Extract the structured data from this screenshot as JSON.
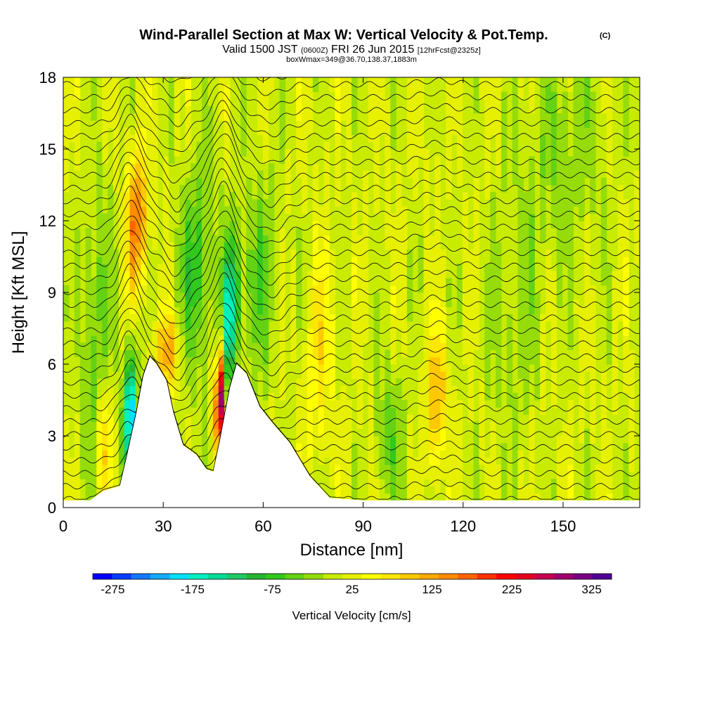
{
  "chart_data": {
    "type": "heatmap",
    "title": {
      "main": "Wind-Parallel Section at Max W: Vertical Velocity & Pot.Temp.",
      "copyright": "(C)",
      "valid_prefix": "Valid 1500 JST",
      "valid_utc": "(0600Z)",
      "valid_date": "FRI 26 Jun 2015",
      "forecast": "[12hrFcst@2325z]",
      "boxmax": "boxWmax=349@36.70,138.37,1883m"
    },
    "xlabel": "Distance [nm]",
    "ylabel": "Height [Kft MSL]",
    "xlim": [
      0,
      173
    ],
    "ylim": [
      0,
      18
    ],
    "xticks": [
      "0",
      "30",
      "60",
      "90",
      "120",
      "150"
    ],
    "xtick_values": [
      0,
      30,
      60,
      90,
      120,
      150
    ],
    "yticks": [
      "0",
      "3",
      "6",
      "9",
      "12",
      "15",
      "18"
    ],
    "ytick_values": [
      0,
      3,
      6,
      9,
      12,
      15,
      18
    ],
    "colorbar": {
      "label": "Vertical Velocity [cm/s]",
      "tick_labels": [
        "-275",
        "-175",
        "-75",
        "25",
        "125",
        "225",
        "325"
      ],
      "tick_values": [
        -275,
        -175,
        -75,
        25,
        125,
        225,
        325
      ],
      "range": [
        -300,
        350
      ],
      "colors": [
        "#0000ff",
        "#0a3cff",
        "#1478ff",
        "#14aaff",
        "#00e0ff",
        "#00f0c0",
        "#00dc96",
        "#1ec864",
        "#28b432",
        "#32c81e",
        "#64d214",
        "#96dc0a",
        "#c8eb00",
        "#e6f000",
        "#ffff00",
        "#ffe600",
        "#ffc800",
        "#ffaa00",
        "#ff8c00",
        "#ff6400",
        "#ff3200",
        "#ff0000",
        "#e6001e",
        "#c80050",
        "#a0006e",
        "#780082",
        "#500096"
      ]
    },
    "terrain_profile": [
      {
        "x": 0,
        "h": 0.3
      },
      {
        "x": 8,
        "h": 0.3
      },
      {
        "x": 12,
        "h": 0.7
      },
      {
        "x": 17,
        "h": 0.9
      },
      {
        "x": 19,
        "h": 2.1
      },
      {
        "x": 22,
        "h": 4.0
      },
      {
        "x": 24,
        "h": 5.5
      },
      {
        "x": 26,
        "h": 6.3
      },
      {
        "x": 28,
        "h": 6.0
      },
      {
        "x": 31,
        "h": 5.3
      },
      {
        "x": 33,
        "h": 4.0
      },
      {
        "x": 36,
        "h": 2.6
      },
      {
        "x": 40,
        "h": 2.2
      },
      {
        "x": 43,
        "h": 1.6
      },
      {
        "x": 45,
        "h": 1.5
      },
      {
        "x": 47,
        "h": 2.8
      },
      {
        "x": 50,
        "h": 5.0
      },
      {
        "x": 52,
        "h": 6.0
      },
      {
        "x": 55,
        "h": 5.6
      },
      {
        "x": 59,
        "h": 4.2
      },
      {
        "x": 63,
        "h": 3.5
      },
      {
        "x": 68,
        "h": 2.7
      },
      {
        "x": 74,
        "h": 1.3
      },
      {
        "x": 80,
        "h": 0.4
      },
      {
        "x": 90,
        "h": 0.3
      },
      {
        "x": 173,
        "h": 0.3
      }
    ],
    "w_features": [
      {
        "x": 22,
        "h": 12.0,
        "w": 150,
        "sx": 2.2,
        "sy": 2.0
      },
      {
        "x": 20,
        "h": 4.0,
        "w": -220,
        "sx": 1.4,
        "sy": 1.8
      },
      {
        "x": 31,
        "h": 6.5,
        "w": 110,
        "sx": 2.5,
        "sy": 1.2
      },
      {
        "x": 47,
        "h": 4.5,
        "w": 320,
        "sx": 1.0,
        "sy": 1.5
      },
      {
        "x": 50,
        "h": 8.0,
        "w": -180,
        "sx": 1.5,
        "sy": 2.2
      },
      {
        "x": 40,
        "h": 10.0,
        "w": -80,
        "sx": 4.0,
        "sy": 3.0
      },
      {
        "x": 58,
        "h": 9.5,
        "w": -60,
        "sx": 4.0,
        "sy": 3.0
      },
      {
        "x": 12,
        "h": 2.5,
        "w": 90,
        "sx": 1.5,
        "sy": 1.8
      },
      {
        "x": 10,
        "h": 7.5,
        "w": -60,
        "sx": 3.0,
        "sy": 4.0
      },
      {
        "x": 112,
        "h": 4.5,
        "w": 110,
        "sx": 2.0,
        "sy": 2.0
      },
      {
        "x": 77,
        "h": 6.5,
        "w": 55,
        "sx": 3.0,
        "sy": 3.0
      },
      {
        "x": 98,
        "h": 3.0,
        "w": -60,
        "sx": 3.0,
        "sy": 2.0
      },
      {
        "x": 150,
        "h": 15.0,
        "w": -40,
        "sx": 8.0,
        "sy": 3.0
      },
      {
        "x": 135,
        "h": 8.0,
        "w": -30,
        "sx": 6.0,
        "sy": 4.0
      }
    ],
    "isentropes": {
      "count": 34,
      "wave_centers": [
        {
          "x": 20,
          "amp": 1.6,
          "sx": 3.0
        },
        {
          "x": 48,
          "amp": 1.8,
          "sx": 3.2
        },
        {
          "x": 34,
          "amp": -0.9,
          "sx": 3.0
        },
        {
          "x": 62,
          "amp": -0.7,
          "sx": 4.0
        },
        {
          "x": 112,
          "amp": 0.3,
          "sx": 5.0
        }
      ]
    }
  }
}
